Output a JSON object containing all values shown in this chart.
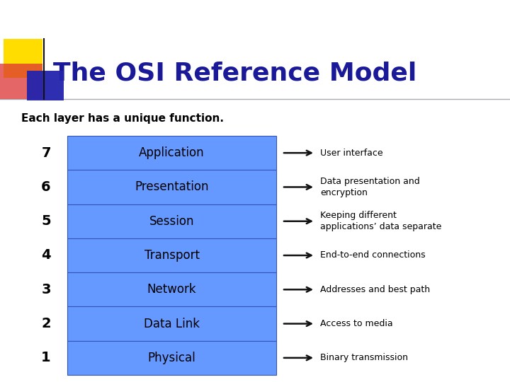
{
  "title": "The OSI Reference Model",
  "subtitle": "Each layer has a unique function.",
  "title_color": "#1a1a99",
  "subtitle_color": "#000000",
  "bg_color": "#ffffff",
  "layers": [
    {
      "num": 7,
      "name": "Application",
      "desc": "User interface"
    },
    {
      "num": 6,
      "name": "Presentation",
      "desc": "Data presentation and\nencryption"
    },
    {
      "num": 5,
      "name": "Session",
      "desc": "Keeping different\napplications’ data separate"
    },
    {
      "num": 4,
      "name": "Transport",
      "desc": "End-to-end connections"
    },
    {
      "num": 3,
      "name": "Network",
      "desc": "Addresses and best path"
    },
    {
      "num": 2,
      "name": "Data Link",
      "desc": "Access to media"
    },
    {
      "num": 1,
      "name": "Physical",
      "desc": "Binary transmission"
    }
  ],
  "box_fill": "#6699ff",
  "box_edge": "#3355bb",
  "box_text_color": "#000000",
  "num_text_color": "#000000",
  "desc_text_color": "#000000",
  "arrow_color": "#111111",
  "deco_yellow": "#ffdd00",
  "deco_red": "#dd3333",
  "deco_blue_dark": "#000088",
  "deco_blue_light": "#4444cc",
  "separator_color": "#888899"
}
